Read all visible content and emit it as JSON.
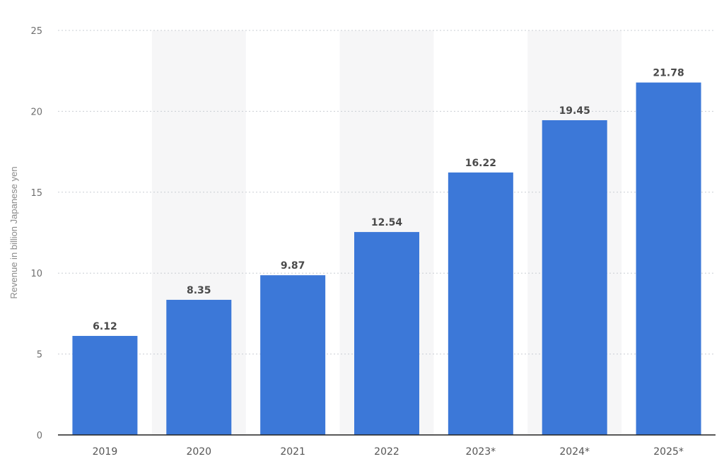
{
  "chart_data": {
    "type": "bar",
    "ylabel": "Revenue in billion Japanese yen",
    "xlabel": "",
    "categories": [
      "2019",
      "2020",
      "2021",
      "2022",
      "2023*",
      "2024*",
      "2025*"
    ],
    "values": [
      6.12,
      8.35,
      9.87,
      12.54,
      16.22,
      19.45,
      21.78
    ],
    "value_labels": [
      "6.12",
      "8.35",
      "9.87",
      "12.54",
      "16.22",
      "19.45",
      "21.78"
    ],
    "ylim": [
      0,
      25
    ],
    "yticks": [
      0,
      5,
      10,
      15,
      20,
      25
    ],
    "grid": true,
    "bar_color": "#3c78d8",
    "band_color": "#f6f6f7"
  }
}
